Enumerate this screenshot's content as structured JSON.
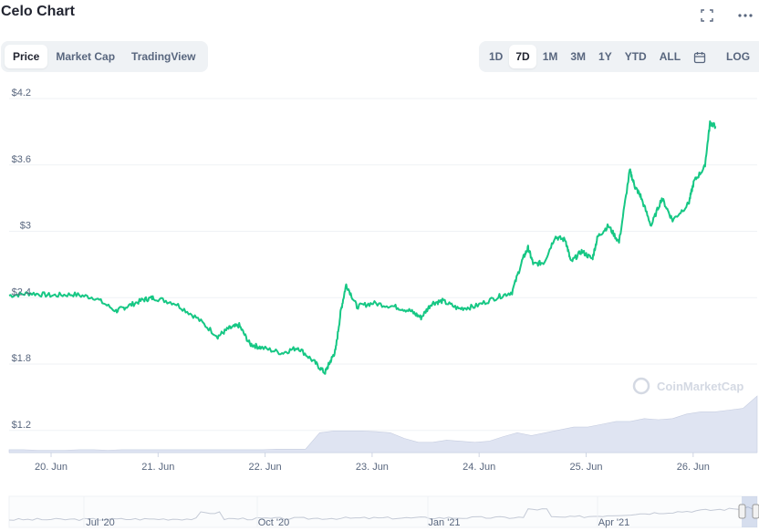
{
  "header": {
    "title": "Celo Chart",
    "fullscreen_icon": "expand-icon",
    "more_icon": "more-horizontal-icon"
  },
  "tabs_left": [
    {
      "label": "Price",
      "active": true
    },
    {
      "label": "Market Cap",
      "active": false
    },
    {
      "label": "TradingView",
      "active": false
    }
  ],
  "range_buttons": [
    {
      "label": "1D",
      "active": false
    },
    {
      "label": "7D",
      "active": true
    },
    {
      "label": "1M",
      "active": false
    },
    {
      "label": "3M",
      "active": false
    },
    {
      "label": "1Y",
      "active": false
    },
    {
      "label": "YTD",
      "active": false
    },
    {
      "label": "ALL",
      "active": false
    }
  ],
  "calendar_icon": "calendar-icon",
  "log_label": "LOG",
  "watermark": "CoinMarketCap",
  "colors": {
    "line": "#16c784",
    "volume": "#dfe4f2",
    "grid": "#eff2f5",
    "text": "#58667e"
  },
  "chart_data": {
    "type": "line",
    "title": "Celo Chart",
    "y_unit": "USD",
    "ylim": [
      1.0,
      4.2
    ],
    "y_ticks": [
      "$4.2",
      "$3.6",
      "$3",
      "$2.4",
      "$1.8",
      "$1.2"
    ],
    "x_ticks": [
      "20. Jun",
      "21. Jun",
      "22. Jun",
      "23. Jun",
      "24. Jun",
      "25. Jun",
      "26. Jun"
    ],
    "grid": true,
    "series": [
      {
        "x": [
          0,
          0.2,
          0.4,
          0.6,
          0.8,
          1.0,
          1.1,
          1.25,
          1.35,
          1.55,
          1.75,
          1.95,
          2.05,
          2.15,
          2.25,
          2.35,
          2.55,
          2.7,
          2.85,
          2.95,
          3.0,
          3.05,
          3.1,
          3.15,
          3.25,
          3.4,
          3.6,
          3.75,
          3.85,
          3.95,
          4.05,
          4.2,
          4.35,
          4.55,
          4.7,
          4.8,
          4.85,
          4.9,
          5.0,
          5.1,
          5.2,
          5.25,
          5.35,
          5.45,
          5.5,
          5.6,
          5.7,
          5.8,
          5.85,
          5.9,
          6.0,
          6.1,
          6.2,
          6.35,
          6.4,
          6.5,
          6.55,
          6.6
        ],
        "values": [
          2.42,
          2.44,
          2.42,
          2.43,
          2.4,
          2.28,
          2.32,
          2.38,
          2.4,
          2.35,
          2.22,
          2.05,
          2.12,
          2.15,
          1.98,
          1.95,
          1.9,
          1.95,
          1.82,
          1.72,
          1.82,
          1.92,
          2.28,
          2.52,
          2.32,
          2.35,
          2.32,
          2.28,
          2.22,
          2.35,
          2.37,
          2.3,
          2.32,
          2.4,
          2.45,
          2.75,
          2.85,
          2.7,
          2.72,
          2.95,
          2.92,
          2.72,
          2.82,
          2.75,
          2.95,
          3.05,
          2.9,
          3.55,
          3.4,
          3.32,
          3.05,
          3.3,
          3.1,
          3.25,
          3.45,
          3.58,
          3.98,
          3.95
        ]
      }
    ],
    "volume": [
      0.05,
      0.05,
      0.04,
      0.04,
      0.04,
      0.05,
      0.05,
      0.04,
      0.05,
      0.05,
      0.05,
      0.05,
      0.05,
      0.05,
      0.05,
      0.05,
      0.05,
      0.05,
      0.05,
      0.06,
      0.06,
      0.06,
      0.35,
      0.38,
      0.38,
      0.38,
      0.37,
      0.35,
      0.25,
      0.18,
      0.18,
      0.22,
      0.2,
      0.18,
      0.2,
      0.28,
      0.35,
      0.3,
      0.35,
      0.4,
      0.45,
      0.45,
      0.5,
      0.55,
      0.55,
      0.6,
      0.58,
      0.6,
      0.68,
      0.72,
      0.72,
      0.75,
      0.78,
      1.0
    ],
    "navigator": {
      "labels": [
        "Jul '20",
        "Oct '20",
        "Jan '21",
        "Apr '21"
      ]
    }
  }
}
